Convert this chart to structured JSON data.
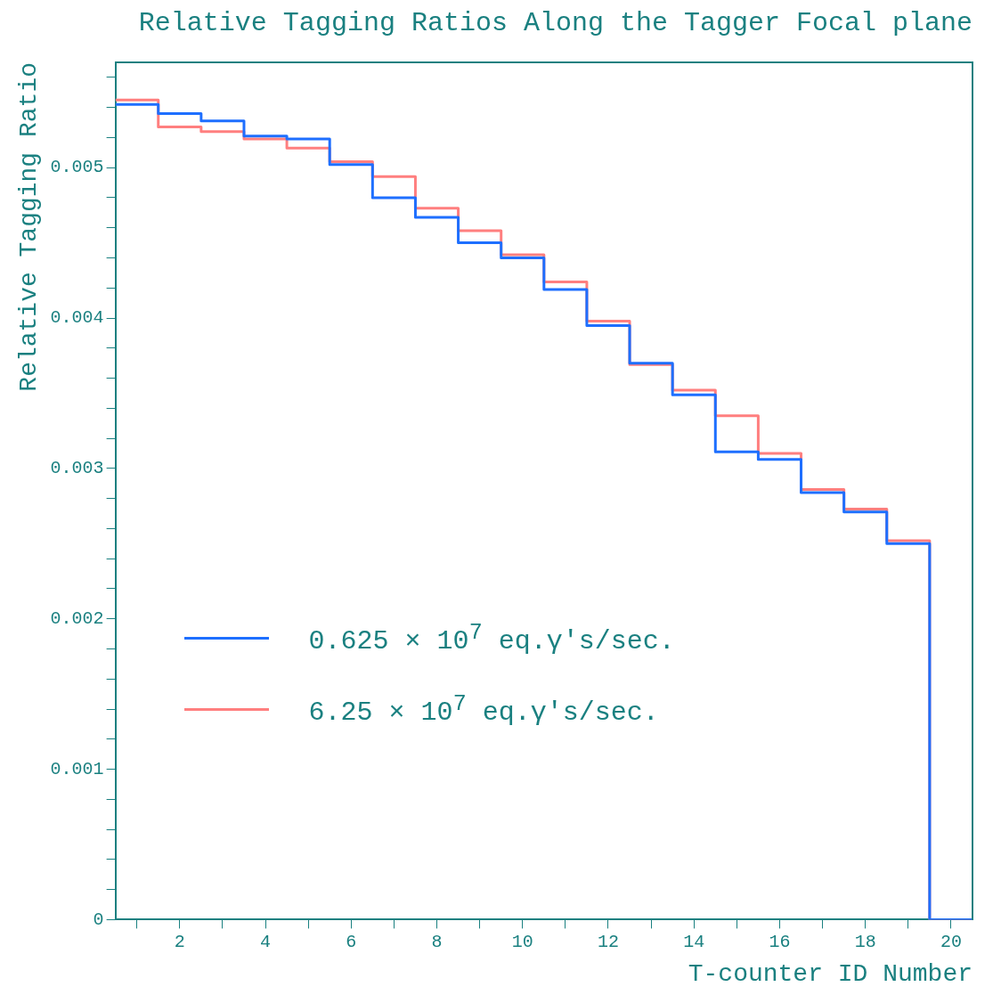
{
  "chart_data": {
    "type": "histogram",
    "title": "Relative Tagging Ratios Along the Tagger Focal plane",
    "xlabel": "T-counter ID Number",
    "ylabel": "Relative Tagging Ratio",
    "bins": [
      0.5,
      1.5,
      2.5,
      3.5,
      4.5,
      5.5,
      6.5,
      7.5,
      8.5,
      9.5,
      10.5,
      11.5,
      12.5,
      13.5,
      14.5,
      15.5,
      16.5,
      17.5,
      18.5,
      19.5,
      20.5
    ],
    "series": [
      {
        "name": "0.625 × 10$^{7}$ eq.γ's/sec.",
        "color": "#1e6fff",
        "values": [
          0.00542,
          0.00536,
          0.00531,
          0.00521,
          0.00519,
          0.00502,
          0.0048,
          0.00467,
          0.0045,
          0.0044,
          0.00419,
          0.00395,
          0.0037,
          0.00349,
          0.00311,
          0.00306,
          0.00284,
          0.00271,
          0.0025,
          0
        ]
      },
      {
        "name": "6.25 × 10$^{7}$ eq.γ's/sec.",
        "color": "#ff7f7f",
        "values": [
          0.00545,
          0.00527,
          0.00524,
          0.00519,
          0.00513,
          0.00504,
          0.00494,
          0.00473,
          0.00458,
          0.00442,
          0.00424,
          0.00398,
          0.00369,
          0.00352,
          0.00335,
          0.0031,
          0.00286,
          0.00273,
          0.00252,
          0
        ]
      }
    ],
    "xlim": [
      0.5,
      20.5
    ],
    "xticks": [
      {
        "value": 1,
        "label": null
      },
      2,
      {
        "value": 3,
        "label": null
      },
      4,
      {
        "value": 5,
        "label": null
      },
      6,
      {
        "value": 7,
        "label": null
      },
      8,
      {
        "value": 9,
        "label": null
      },
      10,
      {
        "value": 11,
        "label": null
      },
      12,
      {
        "value": 13,
        "label": null
      },
      14,
      {
        "value": 15,
        "label": null
      },
      16,
      {
        "value": 17,
        "label": null
      },
      18,
      {
        "value": 19,
        "label": null
      },
      20
    ],
    "ylim": [
      0,
      0.0057
    ],
    "yticks": [
      0,
      {
        "value": 0.0002,
        "label": null
      },
      {
        "value": 0.0004,
        "label": null
      },
      {
        "value": 0.0006,
        "label": null
      },
      {
        "value": 0.0008,
        "label": null
      },
      0.001,
      {
        "value": 0.0012,
        "label": null
      },
      {
        "value": 0.0014,
        "label": null
      },
      {
        "value": 0.0016,
        "label": null
      },
      {
        "value": 0.0018,
        "label": null
      },
      0.002,
      {
        "value": 0.0022,
        "label": null
      },
      {
        "value": 0.0024,
        "label": null
      },
      {
        "value": 0.0026,
        "label": null
      },
      {
        "value": 0.0028,
        "label": null
      },
      0.003,
      {
        "value": 0.0032,
        "label": null
      },
      {
        "value": 0.0034,
        "label": null
      },
      {
        "value": 0.0036,
        "label": null
      },
      {
        "value": 0.0038,
        "label": null
      },
      0.004,
      {
        "value": 0.0042,
        "label": null
      },
      {
        "value": 0.0044,
        "label": null
      },
      {
        "value": 0.0046,
        "label": null
      },
      {
        "value": 0.0048,
        "label": null
      },
      0.005,
      {
        "value": 0.0052,
        "label": null
      },
      {
        "value": 0.0054,
        "label": null
      },
      {
        "value": 0.0056,
        "label": null
      }
    ],
    "grid": false,
    "legend": "left"
  }
}
